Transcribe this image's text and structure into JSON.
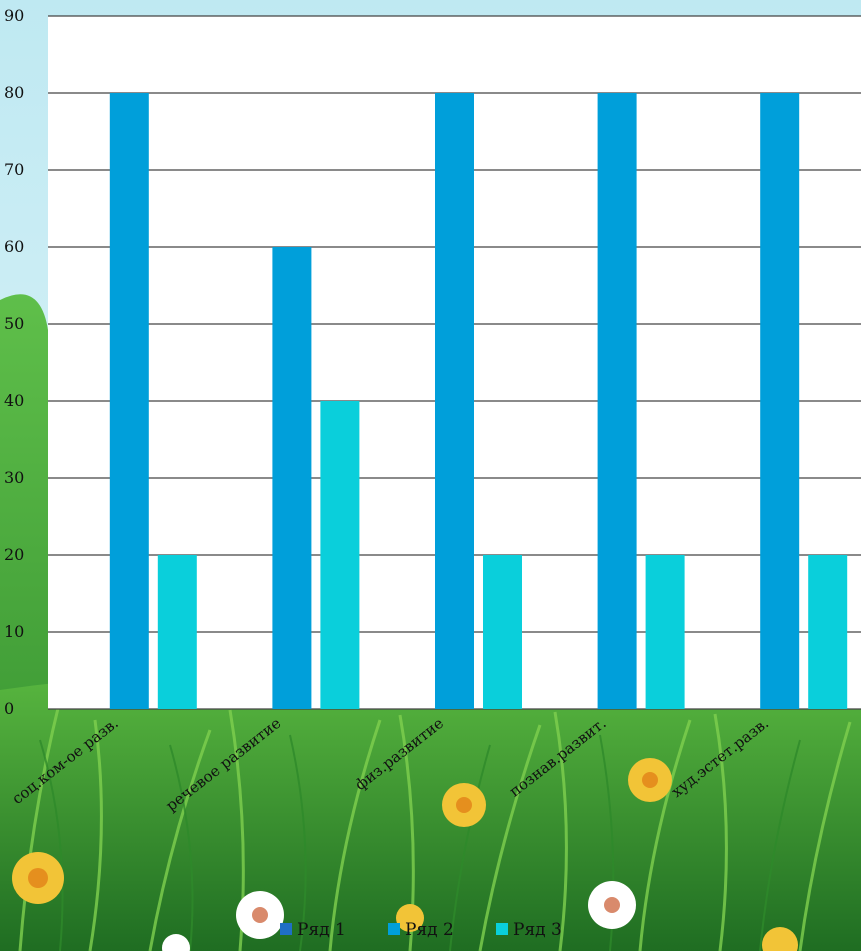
{
  "chart_data": {
    "type": "bar",
    "categories": [
      "соц.ком-ое разв.",
      "речевое развитие",
      "физ.развитие",
      "познав.развит.",
      "худ.эстет.разв."
    ],
    "series": [
      {
        "name": "Ряд 1",
        "values": [
          0,
          0,
          0,
          0,
          0
        ]
      },
      {
        "name": "Ряд 2",
        "values": [
          80,
          60,
          80,
          80,
          80
        ]
      },
      {
        "name": "Ряд 3",
        "values": [
          20,
          40,
          20,
          20,
          20
        ]
      }
    ],
    "ylim": [
      0,
      90
    ],
    "yticks": [
      "0",
      "10",
      "20",
      "30",
      "40",
      "50",
      "60",
      "70",
      "80",
      "90"
    ],
    "grid": true,
    "legend_position": "bottom"
  },
  "colors": {
    "series": [
      "#1F6FC5",
      "#009FDA",
      "#0ACFDB"
    ],
    "plot_background": "#ffffff",
    "gridline": "#444444"
  }
}
